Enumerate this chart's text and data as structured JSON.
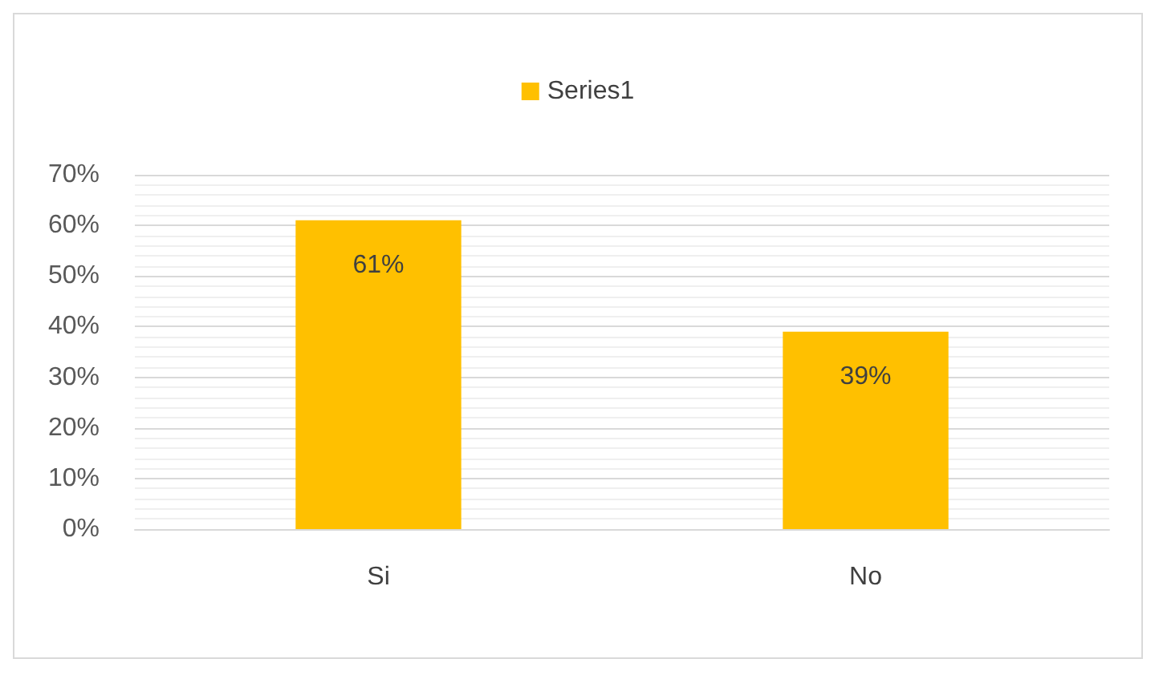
{
  "chart_data": {
    "type": "bar",
    "categories": [
      "Si",
      "No"
    ],
    "series": [
      {
        "name": "Series1",
        "color": "#ffc000",
        "values": [
          61,
          39
        ],
        "value_labels": [
          "61%",
          "39%"
        ]
      }
    ],
    "ylim": [
      0,
      70
    ],
    "yticks": [
      {
        "value": 0,
        "label": "0%"
      },
      {
        "value": 10,
        "label": "10%"
      },
      {
        "value": 20,
        "label": "20%"
      },
      {
        "value": 30,
        "label": "30%"
      },
      {
        "value": 40,
        "label": "40%"
      },
      {
        "value": 50,
        "label": "50%"
      },
      {
        "value": 60,
        "label": "60%"
      },
      {
        "value": 70,
        "label": "70%"
      }
    ],
    "grid": true,
    "legend": "top"
  }
}
